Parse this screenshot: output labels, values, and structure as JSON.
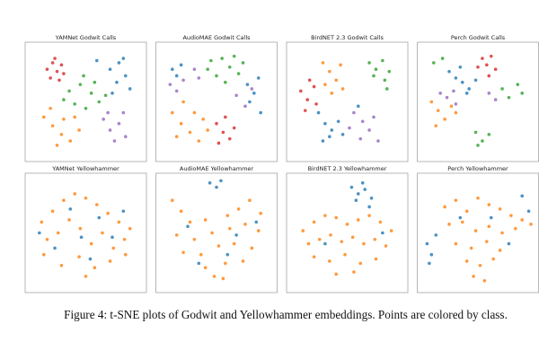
{
  "chart_data": [
    {
      "type": "scatter",
      "title": "YAMNet Godwit Calls",
      "xlim": [
        0,
        100
      ],
      "ylim": [
        0,
        100
      ],
      "series": [
        {
          "color": "#d62728",
          "x": [
            15,
            20,
            24,
            28,
            18,
            30,
            22,
            26
          ],
          "values": [
            80,
            86,
            78,
            84,
            72,
            76,
            90,
            70
          ]
        },
        {
          "color": "#1f77b4",
          "x": [
            72,
            80,
            86,
            78,
            90,
            84,
            60,
            74
          ],
          "values": [
            80,
            86,
            74,
            68,
            62,
            90,
            88,
            58
          ]
        },
        {
          "color": "#2ca02c",
          "x": [
            35,
            45,
            55,
            62,
            50,
            40,
            68,
            58,
            30,
            48
          ],
          "values": [
            60,
            66,
            58,
            50,
            44,
            48,
            56,
            68,
            52,
            74
          ]
        },
        {
          "color": "#ff7f0e",
          "x": [
            12,
            20,
            28,
            36,
            44,
            18,
            30,
            40,
            24
          ],
          "values": [
            36,
            28,
            20,
            14,
            24,
            44,
            34,
            36,
            10
          ]
        },
        {
          "color": "#9467bd",
          "x": [
            66,
            72,
            80,
            86,
            76,
            70,
            84
          ],
          "values": [
            34,
            24,
            30,
            18,
            14,
            40,
            40
          ]
        }
      ]
    },
    {
      "type": "scatter",
      "title": "AudioMAE Godwit Calls",
      "xlim": [
        0,
        100
      ],
      "ylim": [
        0,
        100
      ],
      "series": [
        {
          "color": "#1f77b4",
          "x": [
            10,
            14,
            18,
            78,
            84,
            88,
            80,
            90
          ],
          "values": [
            80,
            74,
            84,
            66,
            58,
            72,
            50,
            40
          ]
        },
        {
          "color": "#2ca02c",
          "x": [
            45,
            55,
            62,
            70,
            50,
            58,
            66,
            42,
            74
          ],
          "values": [
            88,
            90,
            82,
            76,
            74,
            68,
            92,
            80,
            86
          ]
        },
        {
          "color": "#9467bd",
          "x": [
            8,
            14,
            20,
            30,
            34,
            68,
            76,
            82
          ],
          "values": [
            66,
            60,
            70,
            80,
            72,
            56,
            46,
            62
          ]
        },
        {
          "color": "#ff7f0e",
          "x": [
            10,
            18,
            26,
            34,
            42,
            30,
            20,
            38,
            14
          ],
          "values": [
            40,
            30,
            22,
            14,
            24,
            40,
            50,
            34,
            18
          ]
        },
        {
          "color": "#d62728",
          "x": [
            50,
            56,
            62,
            58,
            52,
            66
          ],
          "values": [
            30,
            22,
            16,
            36,
            12,
            26
          ]
        }
      ]
    },
    {
      "type": "scatter",
      "title": "BirdNET 2.3 Godwit Calls",
      "xlim": [
        0,
        100
      ],
      "ylim": [
        0,
        100
      ],
      "series": [
        {
          "color": "#ff7f0e",
          "x": [
            28,
            34,
            40,
            46,
            36,
            44,
            30
          ],
          "values": [
            86,
            78,
            70,
            62,
            58,
            84,
            66
          ]
        },
        {
          "color": "#2ca02c",
          "x": [
            70,
            76,
            82,
            88,
            74,
            84,
            86
          ],
          "values": [
            86,
            80,
            88,
            78,
            74,
            70,
            62
          ]
        },
        {
          "color": "#d62728",
          "x": [
            8,
            14,
            20,
            12,
            22,
            16
          ],
          "values": [
            60,
            52,
            64,
            42,
            48,
            70
          ]
        },
        {
          "color": "#1f77b4",
          "x": [
            24,
            30,
            36,
            42,
            34,
            28,
            46,
            60
          ],
          "values": [
            40,
            30,
            24,
            32,
            18,
            14,
            20,
            46
          ]
        },
        {
          "color": "#9467bd",
          "x": [
            56,
            64,
            70,
            62,
            74,
            52,
            78
          ],
          "values": [
            40,
            32,
            24,
            16,
            36,
            26,
            14
          ]
        }
      ]
    },
    {
      "type": "scatter",
      "title": "Perch Godwit Calls",
      "xlim": [
        0,
        100
      ],
      "ylim": [
        0,
        100
      ],
      "series": [
        {
          "color": "#d62728",
          "x": [
            54,
            58,
            62,
            66,
            50,
            60
          ],
          "values": [
            90,
            84,
            92,
            80,
            82,
            74
          ]
        },
        {
          "color": "#1f77b4",
          "x": [
            24,
            30,
            36,
            42,
            48,
            34,
            40
          ],
          "values": [
            78,
            72,
            68,
            62,
            70,
            82,
            58
          ]
        },
        {
          "color": "#ff7f0e",
          "x": [
            8,
            14,
            20,
            12,
            26,
            30
          ],
          "values": [
            50,
            42,
            34,
            28,
            46,
            40
          ]
        },
        {
          "color": "#9467bd",
          "x": [
            16,
            22,
            28,
            30,
            60,
            66
          ],
          "values": [
            58,
            54,
            60,
            48,
            58,
            52
          ]
        },
        {
          "color": "#2ca02c",
          "x": [
            10,
            18,
            72,
            78,
            86,
            90,
            48,
            54,
            60,
            50
          ],
          "values": [
            86,
            90,
            62,
            54,
            66,
            58,
            22,
            14,
            20,
            10
          ]
        }
      ]
    },
    {
      "type": "scatter",
      "title": "YAMNet Yellowhammer",
      "xlim": [
        0,
        100
      ],
      "ylim": [
        0,
        100
      ],
      "series": [
        {
          "color": "#ff7f0e",
          "x": [
            10,
            20,
            30,
            40,
            50,
            60,
            70,
            80,
            90,
            15,
            25,
            35,
            45,
            55,
            65,
            75,
            85,
            12,
            28,
            44,
            58,
            72,
            86,
            50
          ],
          "values": [
            60,
            70,
            80,
            86,
            82,
            76,
            68,
            60,
            54,
            44,
            50,
            62,
            54,
            40,
            50,
            36,
            44,
            30,
            20,
            28,
            18,
            24,
            30,
            10
          ]
        },
        {
          "color": "#1f77b4",
          "x": [
            8,
            36,
            62,
            84,
            22,
            54,
            74,
            46
          ],
          "values": [
            50,
            72,
            64,
            70,
            36,
            26,
            46,
            46
          ]
        }
      ]
    },
    {
      "type": "scatter",
      "title": "AudioMAE Yellowhammer",
      "xlim": [
        0,
        100
      ],
      "ylim": [
        0,
        100
      ],
      "series": [
        {
          "color": "#ff7f0e",
          "x": [
            10,
            18,
            26,
            40,
            60,
            70,
            80,
            90,
            14,
            30,
            46,
            62,
            76,
            88,
            20,
            36,
            52,
            66,
            82,
            40,
            58,
            74,
            48,
            56
          ],
          "values": [
            80,
            70,
            60,
            62,
            66,
            72,
            80,
            68,
            48,
            44,
            50,
            54,
            58,
            52,
            32,
            30,
            38,
            40,
            36,
            18,
            22,
            24,
            10,
            8
          ]
        },
        {
          "color": "#1f77b4",
          "x": [
            44,
            50,
            54,
            24,
            68,
            86,
            34,
            60
          ],
          "values": [
            96,
            92,
            98,
            56,
            48,
            60,
            22,
            30
          ]
        }
      ]
    },
    {
      "type": "scatter",
      "title": "BirdNET 2.3 Yellowhammer",
      "xlim": [
        0,
        100
      ],
      "ylim": [
        0,
        100
      ],
      "series": [
        {
          "color": "#ff7f0e",
          "x": [
            10,
            20,
            30,
            40,
            50,
            60,
            70,
            80,
            90,
            15,
            25,
            35,
            45,
            55,
            65,
            75,
            85,
            20,
            34,
            48,
            62,
            76,
            40,
            56
          ],
          "values": [
            52,
            60,
            66,
            64,
            58,
            62,
            66,
            60,
            52,
            40,
            44,
            48,
            42,
            46,
            40,
            44,
            38,
            28,
            24,
            30,
            22,
            26,
            12,
            14
          ]
        },
        {
          "color": "#1f77b4",
          "x": [
            54,
            60,
            66,
            72,
            58,
            64,
            70,
            30,
            82
          ],
          "values": [
            92,
            86,
            90,
            82,
            80,
            96,
            74,
            40,
            50
          ]
        }
      ]
    },
    {
      "type": "scatter",
      "title": "Perch Yellowhammer",
      "xlim": [
        0,
        100
      ],
      "ylim": [
        0,
        100
      ],
      "series": [
        {
          "color": "#ff7f0e",
          "x": [
            20,
            30,
            40,
            50,
            60,
            70,
            80,
            90,
            98,
            24,
            36,
            48,
            60,
            72,
            84,
            30,
            44,
            58,
            70,
            40,
            52,
            64,
            46,
            56
          ],
          "values": [
            74,
            80,
            70,
            82,
            76,
            72,
            66,
            62,
            58,
            58,
            60,
            52,
            56,
            50,
            54,
            40,
            36,
            42,
            34,
            24,
            20,
            26,
            10,
            6
          ]
        },
        {
          "color": "#1f77b4",
          "x": [
            4,
            8,
            12,
            6,
            34,
            62,
            90,
            96,
            78
          ],
          "values": [
            40,
            30,
            48,
            22,
            64,
            64,
            84,
            70,
            40
          ]
        }
      ]
    }
  ],
  "caption": "Figure 4: t-SNE plots of Godwit and Yellowhammer embeddings. Points are colored by class."
}
